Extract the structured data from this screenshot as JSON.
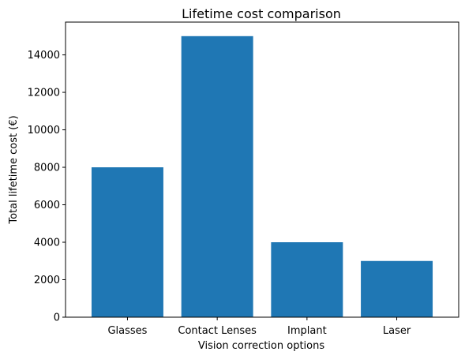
{
  "chart_data": {
    "type": "bar",
    "title": "Lifetime cost comparison",
    "xlabel": "Vision correction options",
    "ylabel": "Total lifetime cost (€)",
    "categories": [
      "Glasses",
      "Contact Lenses",
      "Implant",
      "Laser"
    ],
    "values": [
      8000,
      15000,
      4000,
      3000
    ],
    "ylim": [
      0,
      15750
    ],
    "yticks": [
      0,
      2000,
      4000,
      6000,
      8000,
      10000,
      12000,
      14000
    ],
    "grid": false,
    "legend": "none",
    "bar_color": "#1f77b4"
  }
}
